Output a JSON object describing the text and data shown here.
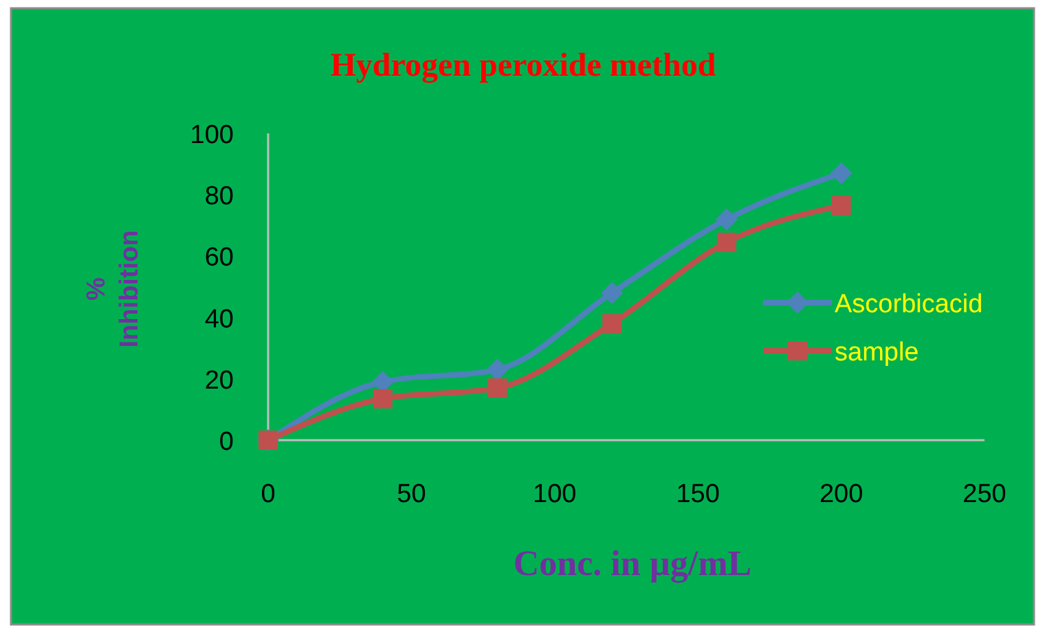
{
  "chart_data": {
    "type": "line",
    "title": "Hydrogen peroxide method",
    "xlabel": "Conc. in µg/mL",
    "ylabel": "% Inhibition",
    "x": [
      0,
      40,
      80,
      120,
      160,
      200
    ],
    "series": [
      {
        "name": "Ascorbicacid",
        "color": "#4f81bd",
        "marker": "diamond",
        "values": [
          0,
          19,
          23,
          48,
          72,
          87
        ]
      },
      {
        "name": "sample",
        "color": "#c0504d",
        "marker": "square",
        "values": [
          0,
          13.5,
          17,
          38,
          64.5,
          76.5
        ]
      }
    ],
    "xlim": [
      0,
      250
    ],
    "xticks": [
      0,
      50,
      100,
      150,
      200,
      250
    ],
    "ylim": [
      0,
      100
    ],
    "yticks": [
      0,
      20,
      40,
      60,
      80,
      100
    ],
    "grid": false,
    "legend": "right",
    "line_style": "solid"
  }
}
